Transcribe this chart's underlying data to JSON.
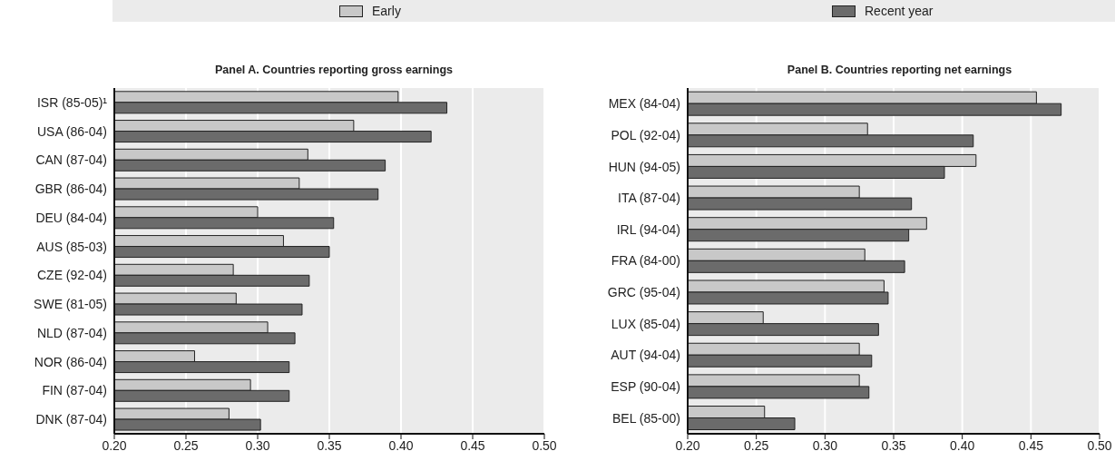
{
  "chart_data": [
    {
      "type": "bar",
      "orientation": "horizontal",
      "title": "Panel A. Countries reporting gross earnings",
      "categories": [
        "ISR (85-05)¹",
        "USA (86-04)",
        "CAN (87-04)",
        "GBR (86-04)",
        "DEU (84-04)",
        "AUS (85-03)",
        "CZE (92-04)",
        "SWE (81-05)",
        "NLD (87-04)",
        "NOR (86-04)",
        "FIN (87-04)",
        "DNK (87-04)"
      ],
      "series": [
        {
          "name": "Early",
          "color": "#c8c8c8",
          "values": [
            0.398,
            0.367,
            0.335,
            0.329,
            0.3,
            0.318,
            0.283,
            0.285,
            0.307,
            0.256,
            0.295,
            0.28
          ]
        },
        {
          "name": "Recent year",
          "color": "#6b6b6b",
          "values": [
            0.432,
            0.421,
            0.389,
            0.384,
            0.353,
            0.35,
            0.336,
            0.331,
            0.326,
            0.322,
            0.322,
            0.302
          ]
        }
      ],
      "xlim": [
        0.2,
        0.5
      ],
      "xticks": [
        {
          "value": 0.2,
          "label": "0.20"
        },
        {
          "value": 0.25,
          "label": "0.25"
        },
        {
          "value": 0.3,
          "label": "0.30"
        },
        {
          "value": 0.35,
          "label": "0.35"
        },
        {
          "value": 0.4,
          "label": "0.40"
        },
        {
          "value": 0.45,
          "label": "0.45"
        },
        {
          "value": 0.5,
          "label": "0.50"
        }
      ],
      "grid": "x",
      "legend": "top"
    },
    {
      "type": "bar",
      "orientation": "horizontal",
      "title": "Panel B. Countries reporting net earnings",
      "categories": [
        "MEX (84-04)",
        "POL (92-04)",
        "HUN (94-05)",
        "ITA (87-04)",
        "IRL (94-04)",
        "FRA (84-00)",
        "GRC (95-04)",
        "LUX (85-04)",
        "AUT (94-04)",
        "ESP (90-04)",
        "BEL (85-00)"
      ],
      "series": [
        {
          "color": "#c8c8c8",
          "values": [
            0.454,
            0.331,
            0.41,
            0.325,
            0.374,
            0.329,
            0.343,
            0.255,
            0.325,
            0.325,
            0.256
          ]
        },
        {
          "color": "#6b6b6b",
          "values": [
            0.472,
            0.408,
            0.387,
            0.363,
            0.361,
            0.358,
            0.346,
            0.339,
            0.334,
            0.332,
            0.278
          ]
        }
      ],
      "xlim": [
        0.2,
        0.5
      ],
      "xticks": [
        {
          "value": 0.2,
          "label": "0.20"
        },
        {
          "value": 0.25,
          "label": "0.25"
        },
        {
          "value": 0.3,
          "label": "0.30"
        },
        {
          "value": 0.35,
          "label": "0.35"
        },
        {
          "value": 0.4,
          "label": "0.40"
        },
        {
          "value": 0.45,
          "label": "0.45"
        },
        {
          "value": 0.5,
          "label": "0.50"
        }
      ],
      "grid": "x"
    }
  ]
}
